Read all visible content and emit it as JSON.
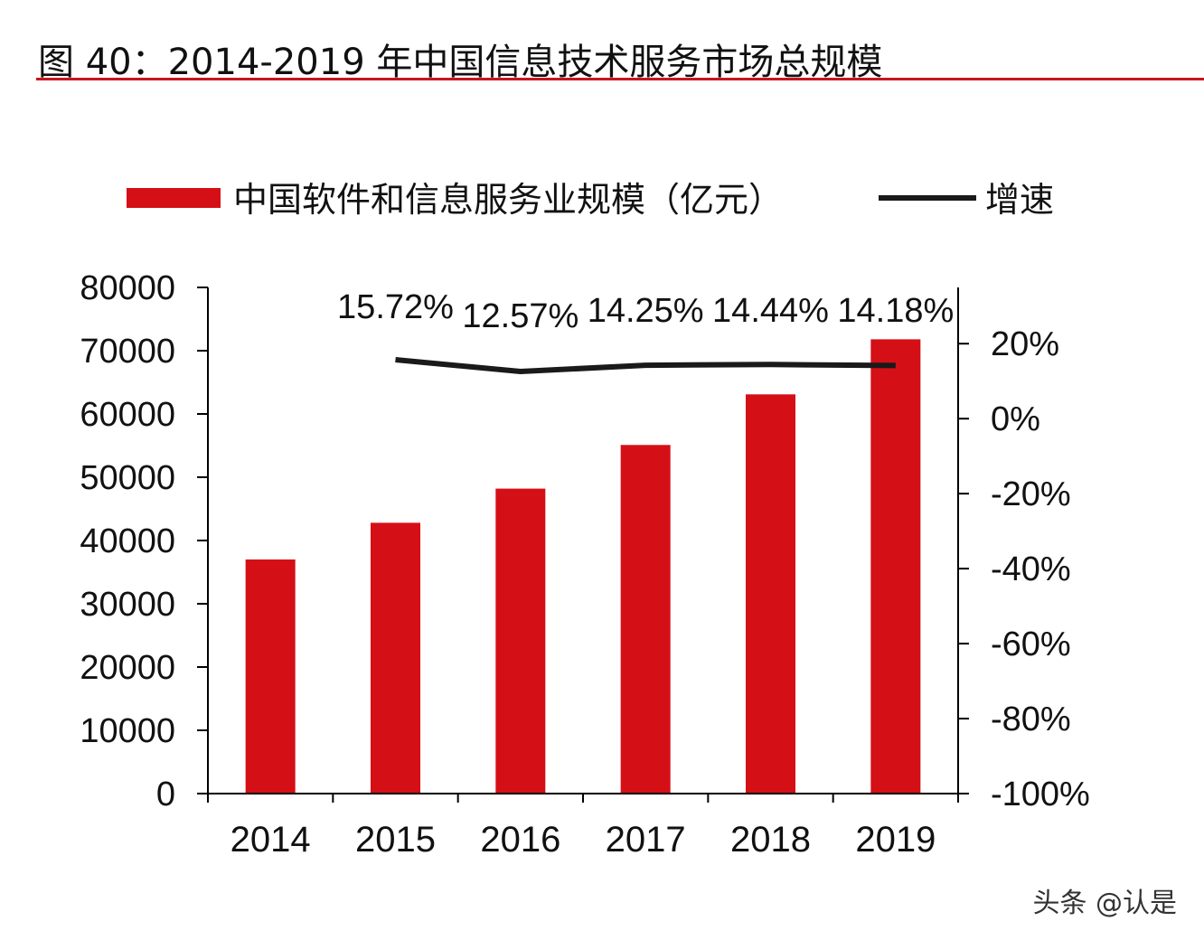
{
  "figure_title": "图 40：2014-2019 年中国信息技术服务市场总规模",
  "watermark": "头条 @认是",
  "colors": {
    "bar": "#d50f16",
    "line": "#1a1a1a",
    "accent_rule": "#c8161d",
    "axis": "#000000"
  },
  "chart_data": {
    "type": "bar",
    "title": "",
    "categories": [
      "2014",
      "2015",
      "2016",
      "2017",
      "2018",
      "2019"
    ],
    "series": [
      {
        "name": "中国软件和信息服务业规模（亿元）",
        "type": "bar",
        "axis": "left",
        "values": [
          37000,
          42800,
          48200,
          55100,
          63100,
          71800
        ]
      },
      {
        "name": "增速",
        "type": "line",
        "axis": "right",
        "values": [
          null,
          15.72,
          12.57,
          14.25,
          14.44,
          14.18
        ],
        "labels": [
          "",
          "15.72%",
          "12.57%",
          "14.25%",
          "14.44%",
          "14.18%"
        ]
      }
    ],
    "y_left": {
      "ylim": [
        0,
        80000
      ],
      "ticks": [
        0,
        10000,
        20000,
        30000,
        40000,
        50000,
        60000,
        70000,
        80000
      ],
      "tick_labels": [
        "0",
        "10000",
        "20000",
        "30000",
        "40000",
        "50000",
        "60000",
        "70000",
        "80000"
      ]
    },
    "y_right": {
      "ylim": [
        -100,
        35
      ],
      "ticks": [
        -100,
        -80,
        -60,
        -40,
        -20,
        0,
        20
      ],
      "tick_labels": [
        "-100%",
        "-80%",
        "-60%",
        "-40%",
        "-20%",
        "0%",
        "20%"
      ]
    },
    "xlabel": "",
    "ylabel": "",
    "grid": false,
    "legend_position": "top"
  }
}
